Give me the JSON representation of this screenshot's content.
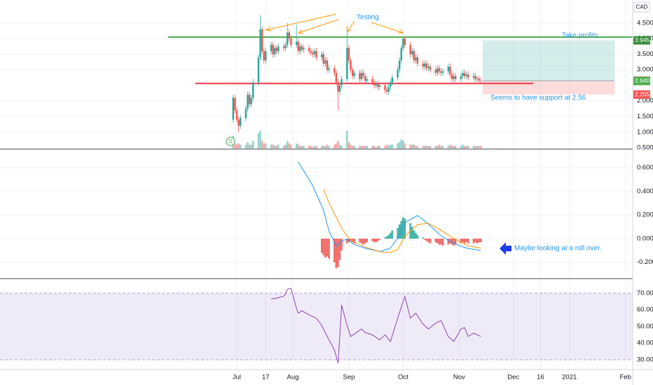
{
  "currency": "CAD",
  "chart_data": [
    {
      "type": "candlestick",
      "x": [
        "2020-06-29",
        "2020-06-30",
        "2020-07-01",
        "2020-07-02",
        "2020-07-03",
        "2020-07-06",
        "2020-07-07",
        "2020-07-08",
        "2020-07-09",
        "2020-07-10",
        "2020-07-13",
        "2020-07-14",
        "2020-07-15",
        "2020-07-16",
        "2020-07-17",
        "2020-07-20",
        "2020-07-21",
        "2020-07-22",
        "2020-07-23",
        "2020-07-24",
        "2020-07-27",
        "2020-07-28",
        "2020-07-29",
        "2020-07-30",
        "2020-07-31",
        "2020-08-03",
        "2020-08-04",
        "2020-08-05",
        "2020-08-06",
        "2020-08-07",
        "2020-08-10",
        "2020-08-11",
        "2020-08-12",
        "2020-08-13",
        "2020-08-14",
        "2020-08-17",
        "2020-08-18",
        "2020-08-19",
        "2020-08-20",
        "2020-08-21",
        "2020-08-24",
        "2020-08-25",
        "2020-08-26",
        "2020-08-27",
        "2020-08-28",
        "2020-08-31",
        "2020-09-01",
        "2020-09-02",
        "2020-09-03",
        "2020-09-04",
        "2020-09-07",
        "2020-09-08",
        "2020-09-09",
        "2020-09-10",
        "2020-09-11",
        "2020-09-14",
        "2020-09-15",
        "2020-09-16",
        "2020-09-17",
        "2020-09-18",
        "2020-09-21",
        "2020-09-22",
        "2020-09-23",
        "2020-09-24",
        "2020-09-25",
        "2020-09-28",
        "2020-09-29",
        "2020-09-30",
        "2020-10-01",
        "2020-10-02",
        "2020-10-05",
        "2020-10-06",
        "2020-10-07",
        "2020-10-08",
        "2020-10-09",
        "2020-10-12",
        "2020-10-13",
        "2020-10-14",
        "2020-10-15",
        "2020-10-16",
        "2020-10-19",
        "2020-10-20",
        "2020-10-21",
        "2020-10-22",
        "2020-10-23",
        "2020-10-26",
        "2020-10-27",
        "2020-10-28",
        "2020-10-29",
        "2020-10-30",
        "2020-11-02",
        "2020-11-03",
        "2020-11-04",
        "2020-11-05",
        "2020-11-06",
        "2020-11-09",
        "2020-11-10",
        "2020-11-11",
        "2020-11-12",
        "2020-11-13"
      ],
      "open": [
        1.4,
        2.1,
        1.7,
        1.4,
        1.2,
        1.45,
        1.75,
        2.2,
        1.9,
        2.1,
        2.6,
        3.4,
        4.3,
        3.6,
        3.3,
        3.6,
        3.8,
        3.5,
        3.7,
        3.6,
        3.75,
        3.7,
        3.8,
        4.2,
        4.0,
        3.8,
        3.9,
        3.6,
        3.75,
        3.65,
        3.7,
        3.6,
        3.55,
        3.5,
        3.6,
        3.4,
        3.5,
        3.2,
        3.3,
        3.0,
        3.05,
        2.9,
        2.6,
        2.3,
        2.5,
        2.7,
        3.7,
        3.3,
        3.0,
        2.8,
        2.9,
        2.7,
        2.9,
        2.8,
        2.65,
        2.7,
        2.6,
        2.5,
        2.55,
        2.45,
        2.5,
        2.35,
        2.3,
        2.45,
        2.6,
        2.75,
        3.0,
        3.3,
        3.7,
        4.0,
        3.8,
        3.5,
        3.6,
        3.3,
        3.4,
        3.2,
        3.1,
        3.2,
        3.05,
        3.1,
        3.0,
        2.9,
        3.05,
        2.95,
        2.9,
        2.95,
        3.1,
        2.85,
        2.7,
        2.8,
        2.7,
        2.8,
        2.9,
        2.8,
        2.85,
        2.75,
        2.8,
        2.7,
        2.72,
        2.65
      ],
      "high": [
        2.2,
        2.2,
        1.8,
        1.5,
        1.55,
        1.85,
        2.3,
        2.3,
        2.2,
        2.7,
        3.5,
        4.75,
        4.4,
        3.7,
        3.7,
        3.9,
        3.9,
        3.8,
        3.8,
        3.85,
        3.85,
        3.9,
        4.5,
        4.3,
        4.1,
        4.45,
        4.0,
        3.85,
        3.85,
        3.8,
        3.8,
        3.7,
        3.65,
        3.7,
        3.7,
        3.6,
        3.6,
        3.4,
        3.4,
        3.15,
        3.15,
        3.0,
        2.7,
        2.6,
        2.8,
        4.4,
        3.8,
        3.4,
        3.1,
        3.0,
        3.0,
        3.0,
        3.0,
        2.9,
        2.8,
        2.8,
        2.7,
        2.65,
        2.65,
        2.6,
        2.6,
        2.45,
        2.55,
        2.7,
        2.85,
        3.1,
        3.4,
        3.8,
        4.05,
        4.1,
        3.9,
        3.7,
        3.7,
        3.5,
        3.5,
        3.3,
        3.3,
        3.3,
        3.2,
        3.2,
        3.1,
        3.15,
        3.15,
        3.05,
        3.05,
        3.2,
        3.2,
        2.95,
        2.9,
        2.9,
        2.9,
        3.0,
        3.0,
        2.95,
        2.95,
        2.9,
        2.9,
        2.8,
        2.8,
        2.75
      ],
      "low": [
        1.3,
        1.6,
        1.3,
        1.0,
        1.1,
        1.35,
        1.65,
        1.8,
        1.8,
        2.0,
        2.5,
        3.3,
        3.5,
        3.2,
        3.2,
        3.5,
        3.4,
        3.4,
        3.5,
        3.5,
        3.6,
        3.6,
        3.7,
        3.9,
        3.7,
        3.7,
        3.5,
        3.5,
        3.55,
        3.55,
        3.5,
        3.45,
        3.4,
        3.4,
        3.3,
        3.3,
        3.1,
        3.1,
        2.9,
        2.9,
        2.8,
        2.5,
        1.7,
        2.2,
        2.4,
        2.6,
        3.2,
        2.9,
        2.7,
        2.7,
        2.6,
        2.6,
        2.7,
        2.55,
        2.55,
        2.5,
        2.4,
        2.4,
        2.35,
        2.35,
        2.25,
        2.2,
        2.2,
        2.35,
        2.5,
        2.65,
        2.9,
        3.2,
        3.6,
        3.7,
        3.4,
        3.4,
        3.2,
        3.2,
        3.1,
        3.0,
        3.0,
        2.95,
        2.95,
        2.9,
        2.8,
        2.8,
        2.85,
        2.8,
        2.8,
        2.85,
        2.75,
        2.6,
        2.6,
        2.6,
        2.6,
        2.7,
        2.7,
        2.7,
        2.65,
        2.65,
        2.6,
        2.6,
        2.55,
        2.55
      ],
      "close": [
        2.1,
        1.7,
        1.4,
        1.2,
        1.45,
        1.75,
        2.2,
        1.9,
        2.1,
        2.6,
        3.4,
        4.3,
        3.6,
        3.3,
        3.6,
        3.8,
        3.5,
        3.7,
        3.6,
        3.75,
        3.7,
        3.8,
        4.2,
        4.0,
        3.8,
        3.9,
        3.6,
        3.75,
        3.65,
        3.7,
        3.6,
        3.55,
        3.5,
        3.6,
        3.4,
        3.5,
        3.2,
        3.3,
        3.0,
        3.05,
        2.9,
        2.6,
        2.3,
        2.5,
        2.7,
        3.7,
        3.3,
        3.0,
        2.8,
        2.9,
        2.7,
        2.9,
        2.8,
        2.65,
        2.7,
        2.6,
        2.5,
        2.55,
        2.45,
        2.5,
        2.35,
        2.3,
        2.45,
        2.6,
        2.75,
        3.0,
        3.3,
        3.7,
        4.0,
        3.8,
        3.5,
        3.6,
        3.3,
        3.4,
        3.2,
        3.1,
        3.2,
        3.05,
        3.1,
        3.0,
        2.9,
        3.05,
        2.95,
        2.9,
        2.95,
        3.1,
        2.85,
        2.7,
        2.8,
        2.7,
        2.8,
        2.9,
        2.8,
        2.85,
        2.75,
        2.8,
        2.7,
        2.72,
        2.65,
        2.64
      ],
      "volume": [
        10,
        4,
        3,
        4,
        3,
        3,
        5,
        3,
        3,
        6,
        12,
        14,
        6,
        4,
        4,
        3,
        3,
        2,
        2,
        3,
        2,
        3,
        6,
        4,
        3,
        4,
        3,
        2,
        2,
        2,
        2,
        2,
        1,
        2,
        2,
        2,
        2,
        2,
        3,
        2,
        3,
        4,
        6,
        3,
        2,
        14,
        5,
        3,
        2,
        2,
        2,
        2,
        2,
        2,
        2,
        2,
        2,
        1,
        2,
        2,
        2,
        3,
        2,
        3,
        3,
        4,
        5,
        7,
        6,
        4,
        3,
        3,
        3,
        2,
        2,
        2,
        2,
        2,
        2,
        2,
        2,
        2,
        3,
        2,
        2,
        2,
        3,
        2,
        2,
        2,
        2,
        3,
        2,
        2,
        2,
        2,
        2,
        2,
        2,
        2
      ],
      "up_color": "#26a69a",
      "down_color": "#ef5350",
      "ylim": [
        0.455,
        5.24
      ],
      "yticks": [
        {
          "value": 0.5,
          "label": "0.500"
        },
        {
          "value": 1,
          "label": "1.000"
        },
        {
          "value": 1.5,
          "label": "1.500"
        },
        {
          "value": 2,
          "label": "2.000"
        },
        {
          "value": 3,
          "label": "3.000"
        },
        {
          "value": 3.5,
          "label": "3.500"
        },
        {
          "value": 4,
          "label": "4.000"
        },
        {
          "value": 4.5,
          "label": "4.500"
        }
      ],
      "hlines": [
        {
          "value": 4.05,
          "color": "#4caf50",
          "start": "2020-05-24",
          "end": "2021-02-05"
        },
        {
          "value": 2.56,
          "color": "#f23645",
          "start": "2020-06-08",
          "end": "2020-12-12"
        }
      ],
      "position": {
        "target": 3.945,
        "entry": 2.65,
        "stop": 2.205,
        "start": "2020-11-14",
        "end": "2021-01-26"
      },
      "price_labels": [
        {
          "value": 3.945,
          "label": "3.945",
          "color": "#388e3c"
        },
        {
          "value": 2.65,
          "label": "2.650",
          "color": "#ef5350"
        },
        {
          "value": 2.64,
          "label": "2.640",
          "color": "#4caf50"
        },
        {
          "value": 2.205,
          "label": "2.205",
          "color": "#ef5350"
        }
      ],
      "annotations": [
        "Testing",
        "Take profits",
        "Seems to have support at 2.56"
      ],
      "event_marker": "S"
    },
    {
      "type": "macd",
      "x": [
        "2020-08-04",
        "2020-08-12",
        "2020-08-18",
        "2020-08-21",
        "2020-08-25",
        "2020-08-28",
        "2020-08-31",
        "2020-09-04",
        "2020-09-10",
        "2020-09-18",
        "2020-09-24",
        "2020-09-28",
        "2020-10-02",
        "2020-10-09",
        "2020-10-15",
        "2020-10-21",
        "2020-10-27",
        "2020-11-02",
        "2020-11-06",
        "2020-11-13"
      ],
      "series": [
        {
          "color": "#2196f3",
          "values": [
            0.65,
            0.45,
            0.24,
            0.065,
            -0.065,
            -0.02,
            -0.005,
            -0.05,
            -0.08,
            -0.11,
            -0.08,
            0.005,
            0.136,
            0.196,
            0.124,
            0.036,
            -0.024,
            -0.065,
            -0.083,
            -0.1
          ]
        },
        {
          "color": "#ff9800",
          "values": [
            null,
            null,
            0.42,
            0.3,
            0.18,
            0.09,
            0.02,
            -0.03,
            -0.07,
            -0.11,
            -0.12,
            -0.09,
            0.02,
            0.12,
            0.13,
            0.08,
            0.02,
            -0.03,
            -0.06,
            -0.08
          ]
        }
      ],
      "histogram": {
        "x": [
          "2020-08-17",
          "2020-08-18",
          "2020-08-19",
          "2020-08-20",
          "2020-08-21",
          "2020-08-24",
          "2020-08-25",
          "2020-08-26",
          "2020-08-27",
          "2020-08-28",
          "2020-08-31",
          "2020-09-01",
          "2020-09-02",
          "2020-09-03",
          "2020-09-04",
          "2020-09-07",
          "2020-09-08",
          "2020-09-09",
          "2020-09-10",
          "2020-09-11",
          "2020-09-14",
          "2020-09-15",
          "2020-09-16",
          "2020-09-17",
          "2020-09-18",
          "2020-09-21",
          "2020-09-22",
          "2020-09-23",
          "2020-09-24",
          "2020-09-25",
          "2020-09-28",
          "2020-09-29",
          "2020-09-30",
          "2020-10-01",
          "2020-10-02",
          "2020-10-05",
          "2020-10-06",
          "2020-10-07",
          "2020-10-08",
          "2020-10-09",
          "2020-10-12",
          "2020-10-13",
          "2020-10-14",
          "2020-10-15",
          "2020-10-16",
          "2020-10-19",
          "2020-10-20",
          "2020-10-21",
          "2020-10-22",
          "2020-10-23",
          "2020-10-26",
          "2020-10-27",
          "2020-10-28",
          "2020-10-29",
          "2020-10-30",
          "2020-11-02",
          "2020-11-03",
          "2020-11-04",
          "2020-11-05",
          "2020-11-06",
          "2020-11-09",
          "2020-11-10",
          "2020-11-11",
          "2020-11-12",
          "2020-11-13"
        ],
        "values": [
          -0.12,
          -0.14,
          -0.16,
          -0.15,
          -0.17,
          -0.2,
          -0.25,
          -0.24,
          -0.18,
          -0.1,
          -0.04,
          -0.03,
          -0.02,
          -0.03,
          -0.04,
          -0.03,
          -0.04,
          -0.05,
          -0.04,
          -0.03,
          -0.02,
          -0.03,
          -0.03,
          -0.02,
          -0.01,
          0.01,
          0.02,
          0.03,
          0.05,
          0.07,
          0.09,
          0.12,
          0.15,
          0.18,
          0.17,
          0.13,
          0.1,
          0.07,
          0.05,
          0.03,
          0.01,
          -0.01,
          -0.02,
          -0.03,
          -0.04,
          -0.03,
          -0.04,
          -0.05,
          -0.05,
          -0.06,
          -0.05,
          -0.04,
          -0.05,
          -0.06,
          -0.05,
          -0.04,
          -0.03,
          -0.04,
          -0.03,
          -0.04,
          -0.04,
          -0.03,
          -0.04,
          -0.03,
          -0.03
        ],
        "up_color": "#26a69a",
        "down_color": "#ef5350"
      },
      "ylim": [
        -0.338,
        0.758
      ],
      "yticks": [
        {
          "value": -0.2,
          "label": "-0.200"
        },
        {
          "value": 0,
          "label": "0.000"
        },
        {
          "value": 0.2,
          "label": "0.200"
        },
        {
          "value": 0.4,
          "label": "0.400"
        },
        {
          "value": 0.6,
          "label": "0.600"
        }
      ],
      "annotations": [
        "Maybe looking at a roll over."
      ]
    },
    {
      "type": "rsi",
      "x": [
        "2020-07-20",
        "2020-07-23",
        "2020-07-27",
        "2020-07-28",
        "2020-07-29",
        "2020-07-31",
        "2020-08-03",
        "2020-08-04",
        "2020-08-06",
        "2020-08-10",
        "2020-08-14",
        "2020-08-17",
        "2020-08-20",
        "2020-08-24",
        "2020-08-26",
        "2020-08-27",
        "2020-08-28",
        "2020-08-31",
        "2020-09-02",
        "2020-09-08",
        "2020-09-10",
        "2020-09-14",
        "2020-09-18",
        "2020-09-21",
        "2020-09-24",
        "2020-09-28",
        "2020-10-01",
        "2020-10-02",
        "2020-10-05",
        "2020-10-08",
        "2020-10-12",
        "2020-10-15",
        "2020-10-19",
        "2020-10-22",
        "2020-10-26",
        "2020-10-29",
        "2020-11-02",
        "2020-11-04",
        "2020-11-06",
        "2020-11-09",
        "2020-11-13"
      ],
      "values": [
        66.6,
        67,
        68.3,
        69.6,
        72.5,
        73,
        61,
        58,
        59.5,
        57,
        55,
        50.6,
        44,
        36,
        28,
        44,
        63,
        50.6,
        44,
        48.5,
        46.4,
        45,
        42,
        45,
        41,
        55,
        65,
        68,
        55,
        58,
        51.5,
        48.5,
        52,
        53.6,
        44,
        41,
        48.5,
        49.4,
        44,
        46,
        44
      ],
      "color": "#8e44ad",
      "band": [
        30,
        70
      ],
      "band_color": "#9575cd",
      "ylim": [
        24.1,
        78.8
      ],
      "yticks": [
        {
          "value": 30,
          "label": "30.00"
        },
        {
          "value": 40,
          "label": "40.00"
        },
        {
          "value": 50,
          "label": "50.00"
        },
        {
          "value": 60,
          "label": "60.00"
        },
        {
          "value": 70,
          "label": "70.00"
        }
      ],
      "xlim": [
        "2020-02-21",
        "2021-02-05"
      ],
      "xticks": [
        {
          "value": "2020-07-01",
          "label": "Jul"
        },
        {
          "value": "2020-07-17",
          "label": "17"
        },
        {
          "value": "2020-08-01",
          "label": "Aug"
        },
        {
          "value": "2020-09-01",
          "label": "Sep"
        },
        {
          "value": "2020-10-01",
          "label": "Oct"
        },
        {
          "value": "2020-11-01",
          "label": "Nov"
        },
        {
          "value": "2020-12-01",
          "label": "Dec"
        },
        {
          "value": "2020-12-16",
          "label": "16"
        },
        {
          "value": "2021-01-01",
          "label": "2021"
        },
        {
          "value": "2021-02-01",
          "label": "Feb"
        }
      ]
    }
  ]
}
